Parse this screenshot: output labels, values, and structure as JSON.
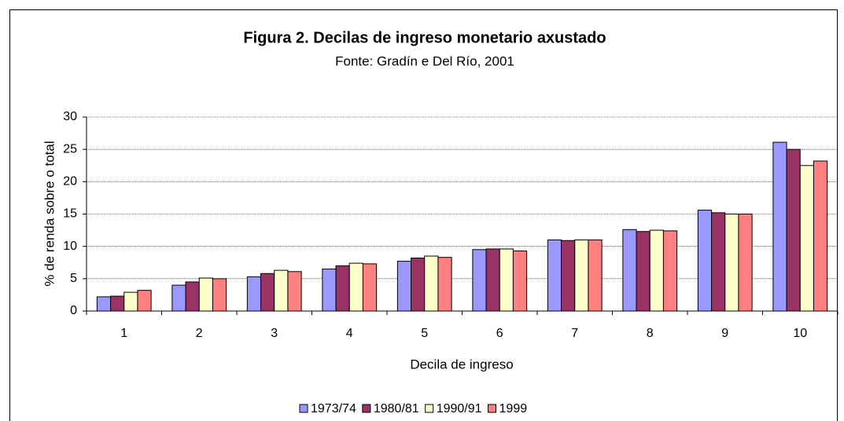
{
  "chart_data": {
    "type": "bar",
    "title": "Figura 2. Decilas de ingreso monetario axustado",
    "subtitle": "Fonte: Gradín e Del Río, 2001",
    "x_label": "Decila de ingreso",
    "y_label": "% de renda sobre o total",
    "categories": [
      "1",
      "2",
      "3",
      "4",
      "5",
      "6",
      "7",
      "8",
      "9",
      "10"
    ],
    "series": [
      {
        "name": "1973/74",
        "color": "#9999ff",
        "values": [
          2.2,
          4.0,
          5.3,
          6.5,
          7.7,
          9.5,
          11.0,
          12.6,
          15.6,
          26.1
        ]
      },
      {
        "name": "1980/81",
        "color": "#993366",
        "values": [
          2.3,
          4.5,
          5.8,
          7.0,
          8.2,
          9.6,
          10.9,
          12.3,
          15.2,
          25.0
        ]
      },
      {
        "name": "1990/91",
        "color": "#ffffcc",
        "values": [
          2.9,
          5.1,
          6.3,
          7.4,
          8.5,
          9.6,
          11.0,
          12.5,
          15.0,
          22.5
        ]
      },
      {
        "name": "1999",
        "color": "#ff8080",
        "values": [
          3.2,
          5.0,
          6.1,
          7.3,
          8.3,
          9.3,
          11.0,
          12.4,
          15.0,
          23.2
        ]
      }
    ],
    "ylim": [
      0,
      30
    ],
    "yticks": [
      0,
      5,
      10,
      15,
      20,
      25,
      30
    ],
    "grid": true,
    "legend": "bottom"
  }
}
